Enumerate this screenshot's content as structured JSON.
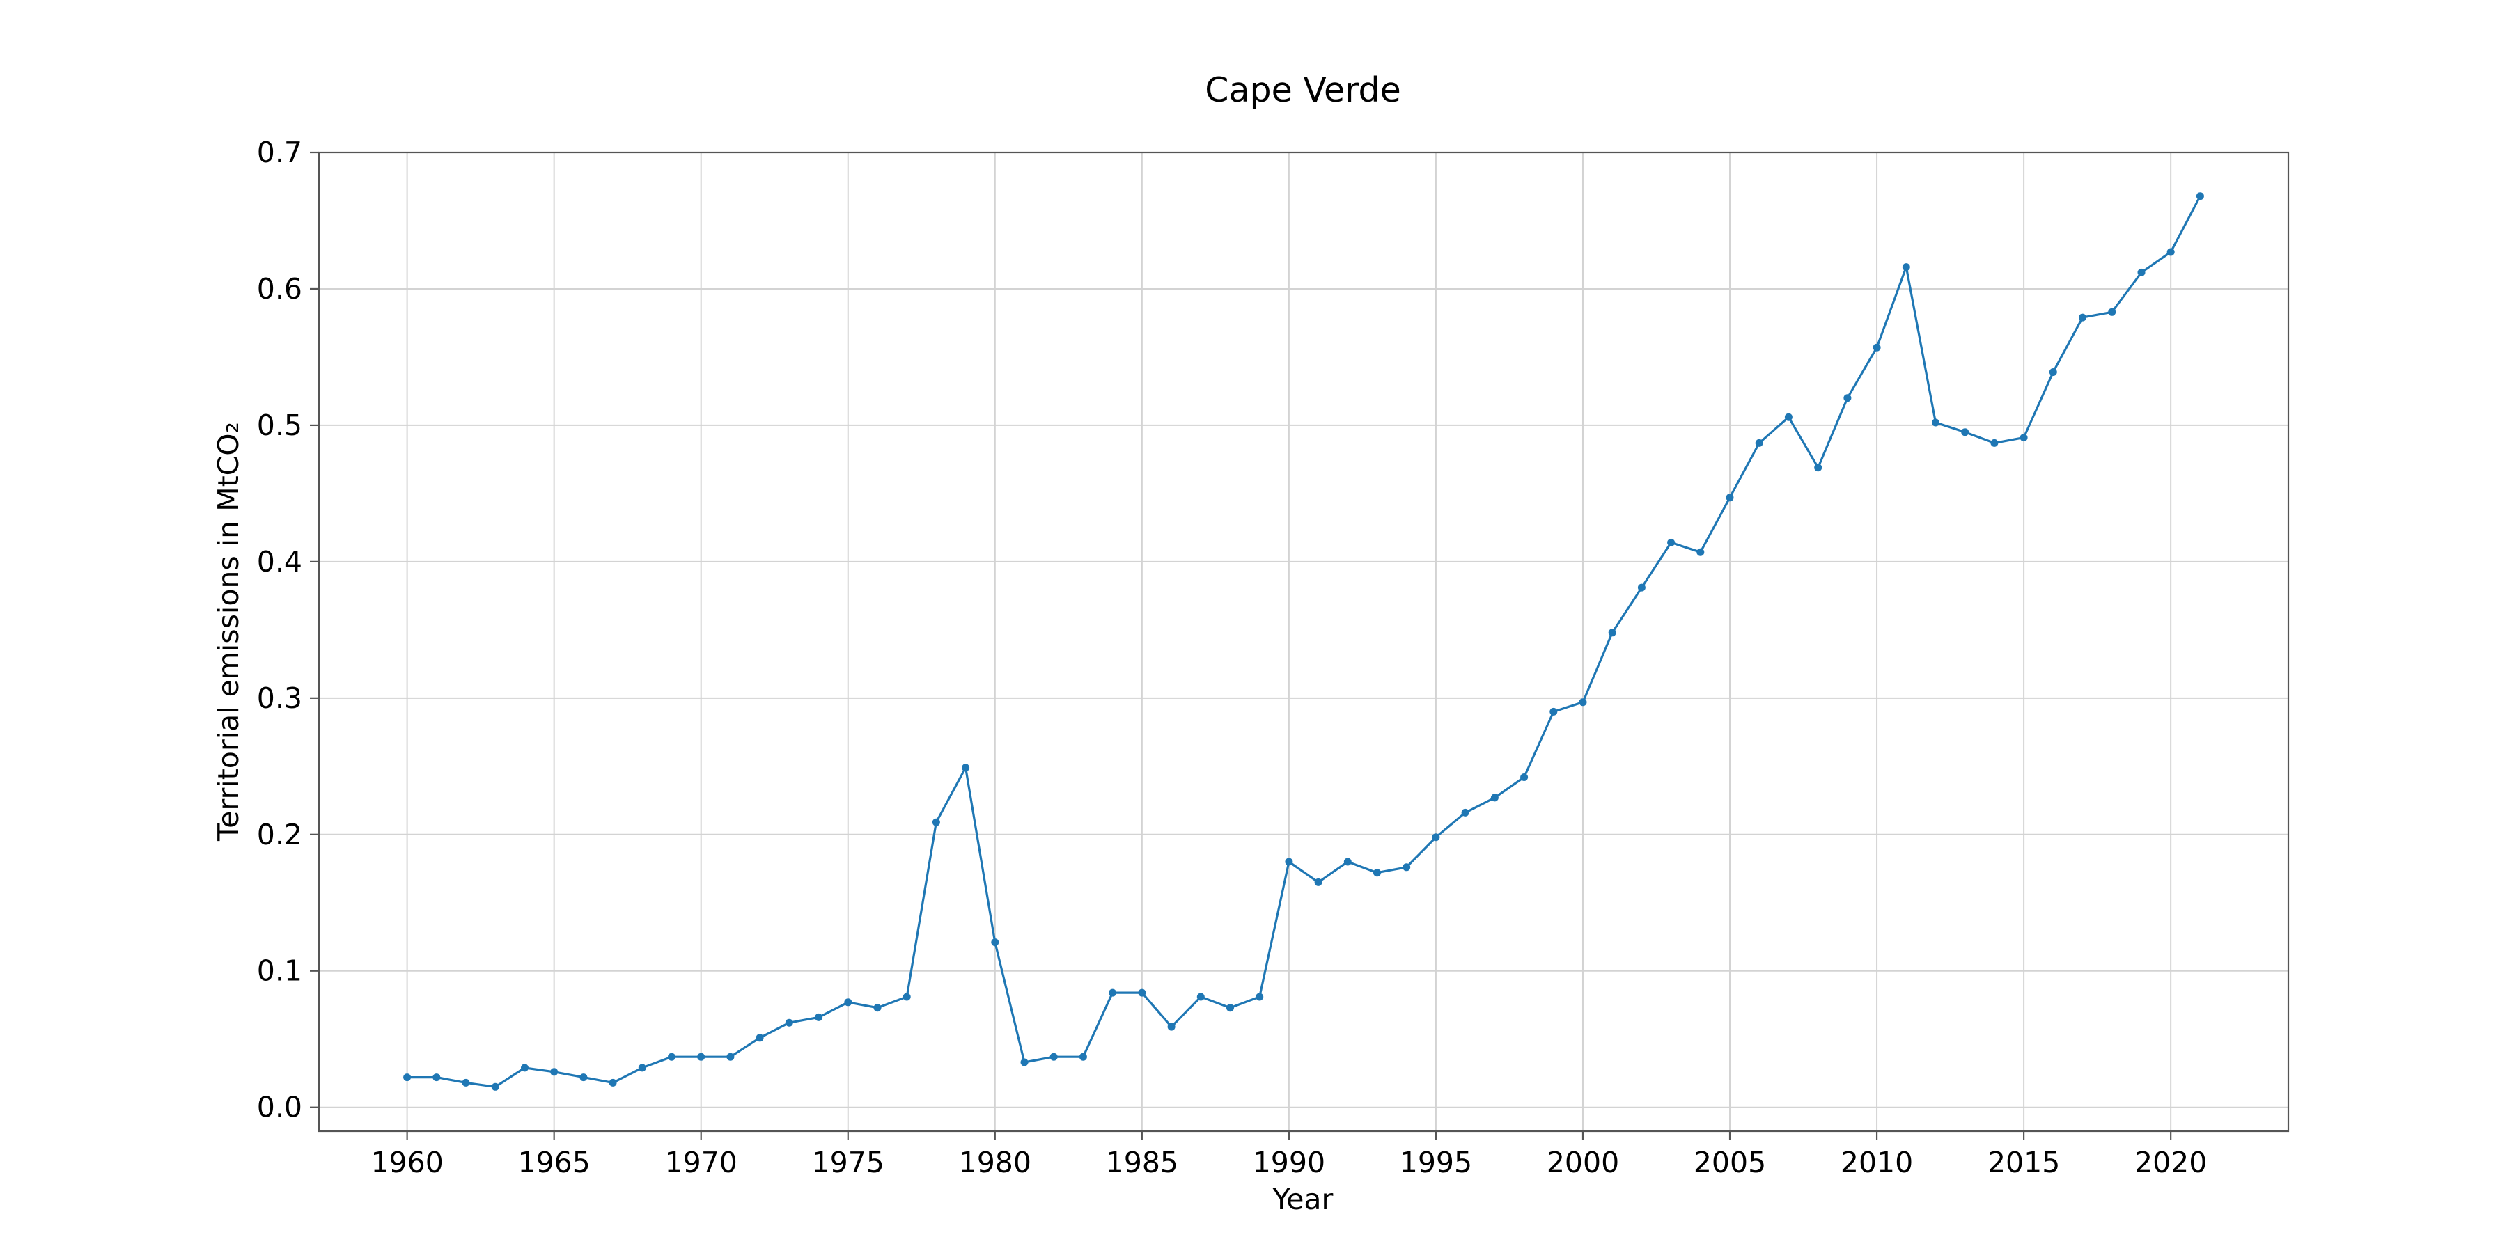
{
  "chart_data": {
    "type": "line",
    "title": "Cape Verde",
    "xlabel": "Year",
    "ylabel": "Territorial emissions in MtCO₂",
    "xlim": [
      1957,
      2024
    ],
    "ylim": [
      -0.0175,
      0.7
    ],
    "xticks": [
      1960,
      1965,
      1970,
      1975,
      1980,
      1985,
      1990,
      1995,
      2000,
      2005,
      2010,
      2015,
      2020
    ],
    "yticks": [
      0.0,
      0.1,
      0.2,
      0.3,
      0.4,
      0.5,
      0.6,
      0.7
    ],
    "ytick_labels": [
      "0.0",
      "0.1",
      "0.2",
      "0.3",
      "0.4",
      "0.5",
      "0.6",
      "0.7"
    ],
    "grid": true,
    "legend": "none",
    "color": "#1f77b4",
    "marker": "circle",
    "x": [
      1960,
      1961,
      1962,
      1963,
      1964,
      1965,
      1966,
      1967,
      1968,
      1969,
      1970,
      1971,
      1972,
      1973,
      1974,
      1975,
      1976,
      1977,
      1978,
      1979,
      1980,
      1981,
      1982,
      1983,
      1984,
      1985,
      1986,
      1987,
      1988,
      1989,
      1990,
      1991,
      1992,
      1993,
      1994,
      1995,
      1996,
      1997,
      1998,
      1999,
      2000,
      2001,
      2002,
      2003,
      2004,
      2005,
      2006,
      2007,
      2008,
      2009,
      2010,
      2011,
      2012,
      2013,
      2014,
      2015,
      2016,
      2017,
      2018,
      2019,
      2020,
      2021
    ],
    "y": [
      0.022,
      0.022,
      0.018,
      0.015,
      0.029,
      0.026,
      0.022,
      0.018,
      0.029,
      0.037,
      0.037,
      0.037,
      0.051,
      0.062,
      0.066,
      0.077,
      0.073,
      0.081,
      0.209,
      0.249,
      0.121,
      0.033,
      0.037,
      0.037,
      0.084,
      0.084,
      0.059,
      0.081,
      0.073,
      0.081,
      0.18,
      0.165,
      0.18,
      0.172,
      0.176,
      0.198,
      0.216,
      0.227,
      0.242,
      0.29,
      0.297,
      0.348,
      0.381,
      0.414,
      0.407,
      0.447,
      0.487,
      0.506,
      0.469,
      0.52,
      0.557,
      0.616,
      0.502,
      0.495,
      0.487,
      0.491,
      0.539,
      0.579,
      0.583,
      0.612,
      0.627,
      0.668
    ]
  }
}
